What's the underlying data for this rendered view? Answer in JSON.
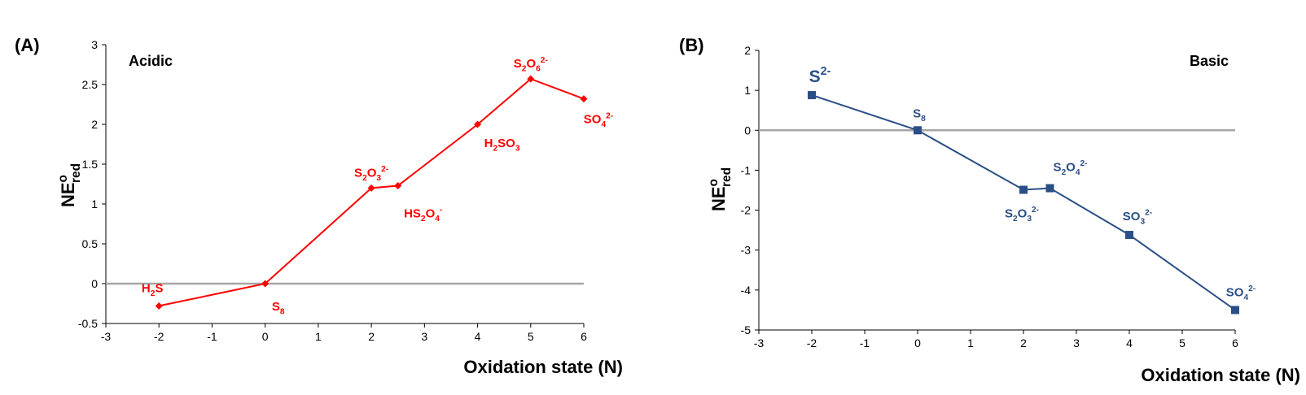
{
  "colors": {
    "acidic_series": "#ff0000",
    "basic_series": "#2a4f86",
    "zero_line": "#a6a6a6",
    "axis": "#000000"
  },
  "chart_data": [
    {
      "type": "line",
      "panel_label": "(A)",
      "condition_label": "Acidic",
      "xlabel": "Oxidation state (N)",
      "ylabel": {
        "main": "NE",
        "sup": "o",
        "sub": "red"
      },
      "xlim": [
        -3,
        6
      ],
      "ylim": [
        -0.5,
        3
      ],
      "x_ticks": [
        "-3",
        "-2",
        "-1",
        "0",
        "1",
        "2",
        "3",
        "4",
        "5",
        "6"
      ],
      "y_ticks": [
        "-0.5",
        "0",
        "0.5",
        "1",
        "1.5",
        "2",
        "2.5",
        "3"
      ],
      "zero_line": true,
      "marker": "diamond",
      "series": [
        {
          "points": [
            {
              "x": -2,
              "y": -0.28,
              "label": [
                [
                  "H"
                ],
                [
                  "2",
                  "sub"
                ],
                [
                  "S"
                ]
              ]
            },
            {
              "x": 0,
              "y": 0,
              "label": [
                [
                  "S"
                ],
                [
                  "8",
                  "sub"
                ]
              ]
            },
            {
              "x": 2,
              "y": 1.2,
              "label": [
                [
                  "S"
                ],
                [
                  "2",
                  "sub"
                ],
                [
                  "O"
                ],
                [
                  "3",
                  "sub"
                ],
                [
                  "2-",
                  "sup"
                ]
              ]
            },
            {
              "x": 2.5,
              "y": 1.23,
              "label": [
                [
                  "HS"
                ],
                [
                  "2",
                  "sub"
                ],
                [
                  "O"
                ],
                [
                  "4",
                  "sub"
                ],
                [
                  "-",
                  "sup"
                ]
              ]
            },
            {
              "x": 4,
              "y": 2.0,
              "label": [
                [
                  "H"
                ],
                [
                  "2",
                  "sub"
                ],
                [
                  "SO"
                ],
                [
                  "3",
                  "sub"
                ]
              ]
            },
            {
              "x": 5,
              "y": 2.57,
              "label": [
                [
                  "S"
                ],
                [
                  "2",
                  "sub"
                ],
                [
                  "O"
                ],
                [
                  "6",
                  "sub"
                ],
                [
                  "2-",
                  "sup"
                ]
              ]
            },
            {
              "x": 6,
              "y": 2.32,
              "label": [
                [
                  "SO"
                ],
                [
                  "4",
                  "sub"
                ],
                [
                  "2-",
                  "sup"
                ]
              ]
            }
          ]
        }
      ]
    },
    {
      "type": "line",
      "panel_label": "(B)",
      "condition_label": "Basic",
      "xlabel": "Oxidation state (N)",
      "ylabel": {
        "main": "NE",
        "sup": "o",
        "sub": "red"
      },
      "xlim": [
        -3,
        6
      ],
      "ylim": [
        -5,
        2
      ],
      "x_ticks": [
        "-3",
        "-2",
        "-1",
        "0",
        "1",
        "2",
        "3",
        "4",
        "5",
        "6"
      ],
      "y_ticks": [
        "-5",
        "-4",
        "-3",
        "-2",
        "-1",
        "0",
        "1",
        "2"
      ],
      "zero_line": true,
      "marker": "square",
      "series": [
        {
          "points": [
            {
              "x": -2,
              "y": 0.88,
              "label": [
                [
                  "S"
                ],
                [
                  "2-",
                  "sup"
                ]
              ]
            },
            {
              "x": 0,
              "y": 0,
              "label": [
                [
                  "S"
                ],
                [
                  "8",
                  "sub"
                ]
              ]
            },
            {
              "x": 2,
              "y": -1.49,
              "label": [
                [
                  "S"
                ],
                [
                  "2",
                  "sub"
                ],
                [
                  "O"
                ],
                [
                  "3",
                  "sub"
                ],
                [
                  "2-",
                  "sup"
                ]
              ]
            },
            {
              "x": 2.5,
              "y": -1.45,
              "label": [
                [
                  "S"
                ],
                [
                  "2",
                  "sub"
                ],
                [
                  "O"
                ],
                [
                  "4",
                  "sub"
                ],
                [
                  "2-",
                  "sup"
                ]
              ]
            },
            {
              "x": 4,
              "y": -2.62,
              "label": [
                [
                  "SO"
                ],
                [
                  "3",
                  "sub"
                ],
                [
                  "2-",
                  "sup"
                ]
              ]
            },
            {
              "x": 6,
              "y": -4.5,
              "label": [
                [
                  "SO"
                ],
                [
                  "4",
                  "sub"
                ],
                [
                  "2-",
                  "sup"
                ]
              ]
            }
          ]
        }
      ]
    }
  ]
}
